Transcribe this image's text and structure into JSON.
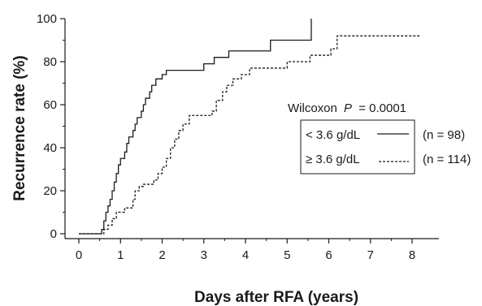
{
  "chart_data": {
    "type": "line",
    "step": true,
    "xlabel": "Days after RFA (years)",
    "ylabel": "Recurrence rate (%)",
    "xlim": [
      0,
      8
    ],
    "ylim": [
      0,
      100
    ],
    "x_ticks": [
      0,
      1,
      2,
      3,
      4,
      5,
      6,
      7,
      8
    ],
    "y_ticks": [
      0,
      20,
      40,
      60,
      80,
      100
    ],
    "grid": false,
    "annotation": {
      "test": "Wilcoxon",
      "p_symbol": "P",
      "p_value": "= 0.0001"
    },
    "series": [
      {
        "name": "< 3.6 g/dL",
        "count": "(n = 98)",
        "linestyle": "solid",
        "points": [
          [
            0,
            0
          ],
          [
            0.45,
            0
          ],
          [
            0.55,
            2
          ],
          [
            0.6,
            6
          ],
          [
            0.65,
            10
          ],
          [
            0.7,
            13
          ],
          [
            0.75,
            16
          ],
          [
            0.8,
            20
          ],
          [
            0.85,
            24
          ],
          [
            0.9,
            28
          ],
          [
            0.95,
            32
          ],
          [
            1.0,
            35
          ],
          [
            1.1,
            38
          ],
          [
            1.15,
            42
          ],
          [
            1.2,
            45
          ],
          [
            1.3,
            48
          ],
          [
            1.35,
            51
          ],
          [
            1.4,
            54
          ],
          [
            1.5,
            57
          ],
          [
            1.55,
            60
          ],
          [
            1.6,
            63
          ],
          [
            1.7,
            66
          ],
          [
            1.75,
            69
          ],
          [
            1.85,
            72
          ],
          [
            2.0,
            74
          ],
          [
            2.1,
            76
          ],
          [
            2.25,
            76
          ],
          [
            3.0,
            79
          ],
          [
            3.25,
            82
          ],
          [
            3.6,
            85
          ],
          [
            4.6,
            90
          ],
          [
            5.55,
            90
          ],
          [
            5.58,
            100
          ]
        ]
      },
      {
        "name": "≥ 3.6 g/dL",
        "count": "(n = 114)",
        "linestyle": "dashed",
        "points": [
          [
            0,
            0
          ],
          [
            0.55,
            0
          ],
          [
            0.6,
            2
          ],
          [
            0.7,
            4
          ],
          [
            0.8,
            7
          ],
          [
            0.9,
            10
          ],
          [
            1.1,
            12
          ],
          [
            1.3,
            16
          ],
          [
            1.35,
            20
          ],
          [
            1.45,
            22
          ],
          [
            1.55,
            23
          ],
          [
            1.8,
            25
          ],
          [
            1.9,
            28
          ],
          [
            2.0,
            31
          ],
          [
            2.1,
            35
          ],
          [
            2.2,
            40
          ],
          [
            2.3,
            44
          ],
          [
            2.4,
            48
          ],
          [
            2.5,
            51
          ],
          [
            2.65,
            55
          ],
          [
            3.2,
            57
          ],
          [
            3.3,
            62
          ],
          [
            3.45,
            66
          ],
          [
            3.55,
            69
          ],
          [
            3.7,
            72
          ],
          [
            3.9,
            74
          ],
          [
            4.1,
            77
          ],
          [
            5.0,
            80
          ],
          [
            5.55,
            83
          ],
          [
            6.05,
            86
          ],
          [
            6.2,
            92
          ],
          [
            8.2,
            92
          ]
        ]
      }
    ]
  }
}
